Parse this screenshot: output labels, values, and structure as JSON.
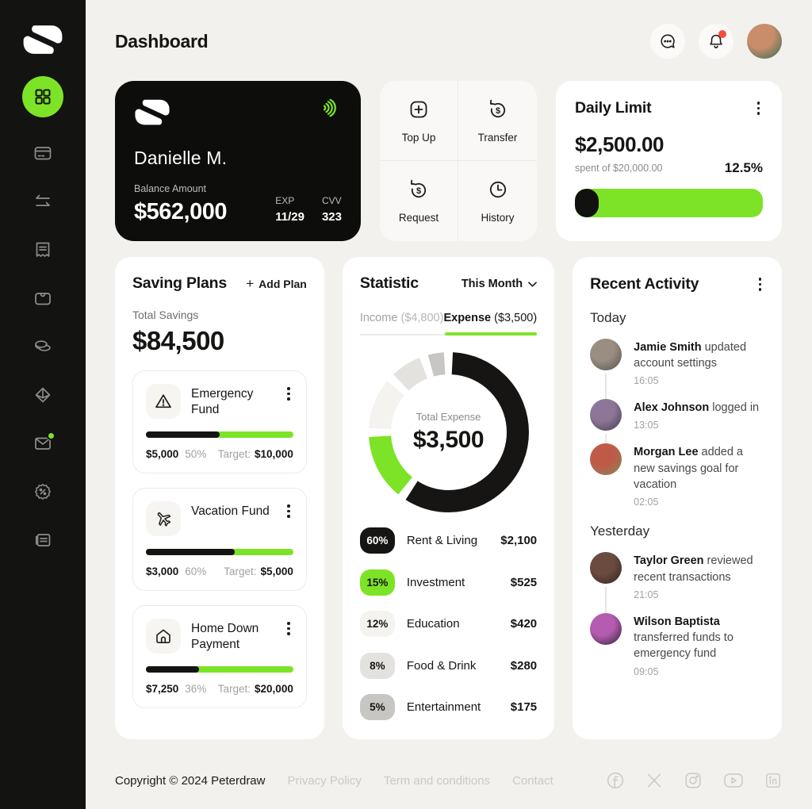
{
  "app": {
    "accent": "#7DE327",
    "sidebar_bg": "#131312",
    "page_bg": "#F2F1EE",
    "notification_red": "#F4503C"
  },
  "header": {
    "title": "Dashboard",
    "icons": [
      "chat-icon",
      "bell-icon"
    ],
    "avatar_colors": [
      "#c98d6b",
      "#2e6b52"
    ]
  },
  "sidebar": {
    "items": [
      {
        "name": "dashboard",
        "icon": "grid-icon",
        "active": true
      },
      {
        "name": "cards",
        "icon": "credit-card-icon"
      },
      {
        "name": "transfers",
        "icon": "arrows-icon"
      },
      {
        "name": "receipts",
        "icon": "receipt-icon"
      },
      {
        "name": "wallet",
        "icon": "wallet-icon"
      },
      {
        "name": "savings",
        "icon": "coins-icon"
      },
      {
        "name": "rewards",
        "icon": "gem-icon"
      },
      {
        "name": "messages",
        "icon": "envelope-icon",
        "badge": true
      },
      {
        "name": "offers",
        "icon": "percent-badge-icon"
      },
      {
        "name": "news",
        "icon": "newspaper-icon"
      }
    ]
  },
  "debit_card": {
    "holder": "Danielle M.",
    "balance_label": "Balance Amount",
    "balance": "$562,000",
    "exp_label": "EXP",
    "exp": "11/29",
    "cvv_label": "CVV",
    "cvv": "323"
  },
  "quick_actions": {
    "items": [
      {
        "label": "Top Up",
        "icon": "plus-square-icon"
      },
      {
        "label": "Transfer",
        "icon": "dollar-rotate-icon"
      },
      {
        "label": "Request",
        "icon": "dollar-rotate-icon"
      },
      {
        "label": "History",
        "icon": "clock-icon"
      }
    ]
  },
  "daily_limit": {
    "title": "Daily Limit",
    "value": "$2,500.00",
    "spent_of": "spent of $20,000.00",
    "pct_label": "12.5%",
    "spent_pct": 12.5
  },
  "saving_plans": {
    "title": "Saving Plans",
    "add_plan": {
      "plus": "+",
      "label": "Add Plan"
    },
    "total_label": "Total Savings",
    "total": "$84,500",
    "target_label": "Target:",
    "plans": [
      {
        "icon": "warning-icon",
        "name": "Emergency Fund",
        "saved": "$5,000",
        "pct_label": "50%",
        "progress_pct": 50,
        "target": "$10,000"
      },
      {
        "icon": "plane-icon",
        "name": "Vacation Fund",
        "saved": "$3,000",
        "pct_label": "60%",
        "progress_pct": 60,
        "target": "$5,000"
      },
      {
        "icon": "home-icon",
        "name": "Home Down Payment",
        "saved": "$7,250",
        "pct_label": "36%",
        "progress_pct": 36,
        "target": "$20,000"
      }
    ]
  },
  "statistic": {
    "title": "Statistic",
    "period": "This Month",
    "tabs": {
      "income_label": "Income",
      "income_amount": "($4,800)",
      "expense_label": "Expense",
      "expense_amount": "($3,500)"
    }
  },
  "chart_data": {
    "type": "pie",
    "title": "Total Expense",
    "center_label": "Total Expense",
    "center_value": "$3,500",
    "legend_position": "bottom",
    "slices": [
      {
        "label": "Rent & Living",
        "pct": 60,
        "pct_label": "60%",
        "amount": "$2,100",
        "color": "#161514",
        "text": "#FFFFFF"
      },
      {
        "label": "Investment",
        "pct": 15,
        "pct_label": "15%",
        "amount": "$525",
        "color": "#7DE327",
        "text": "#161513"
      },
      {
        "label": "Education",
        "pct": 12,
        "pct_label": "12%",
        "amount": "$420",
        "color": "#F4F3F0",
        "text": "#161513"
      },
      {
        "label": "Food & Drink",
        "pct": 8,
        "pct_label": "8%",
        "amount": "$280",
        "color": "#E3E2DF",
        "text": "#161513"
      },
      {
        "label": "Entertainment",
        "pct": 5,
        "pct_label": "5%",
        "amount": "$175",
        "color": "#C7C6C3",
        "text": "#161513"
      }
    ]
  },
  "recent_activity": {
    "title": "Recent Activity",
    "sections": [
      {
        "title": "Today",
        "items": [
          {
            "name": "Jamie Smith",
            "action": " updated account settings",
            "time": "16:05",
            "colors": [
              "#9a8d82",
              "#55504b"
            ]
          },
          {
            "name": "Alex Johnson",
            "action": " logged in",
            "time": "13:05",
            "colors": [
              "#8d7697",
              "#443a4a"
            ]
          },
          {
            "name": "Morgan Lee",
            "action": " added a new savings goal for vacation",
            "time": "02:05",
            "colors": [
              "#c05a48",
              "#7d8d57"
            ]
          }
        ]
      },
      {
        "title": "Yesterday",
        "items": [
          {
            "name": "Taylor Green",
            "action": " reviewed recent transactions",
            "time": "21:05",
            "colors": [
              "#6b4a40",
              "#2e2420"
            ]
          },
          {
            "name": "Wilson Baptista",
            "action": " transferred funds to emergency fund",
            "time": "09:05",
            "colors": [
              "#b55bb0",
              "#2c2433"
            ]
          }
        ]
      }
    ]
  },
  "footer": {
    "copyright": "Copyright © 2024 Peterdraw",
    "links": [
      "Privacy Policy",
      "Term and conditions",
      "Contact"
    ],
    "social_icons": [
      "facebook-icon",
      "x-icon",
      "instagram-icon",
      "youtube-icon",
      "linkedin-icon"
    ]
  }
}
